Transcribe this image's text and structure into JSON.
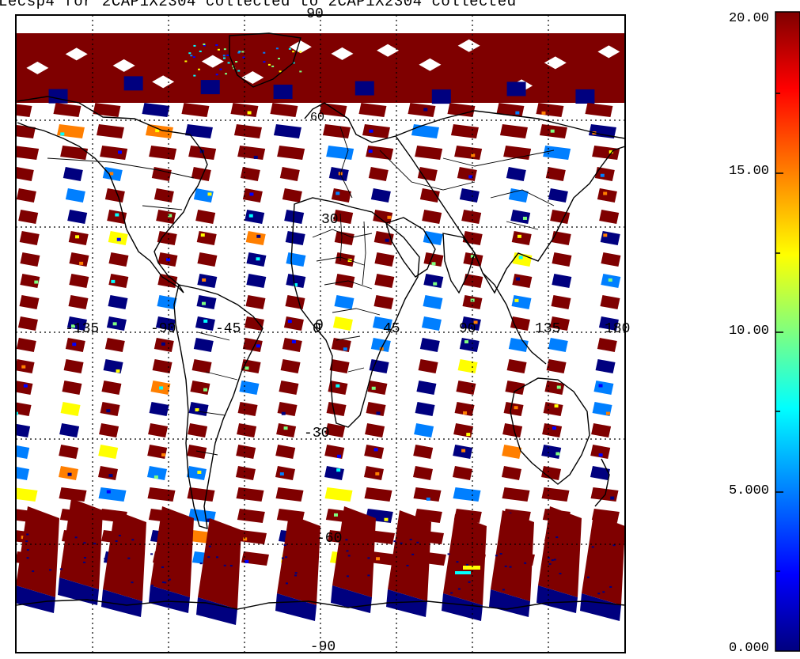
{
  "title": "Lecsp4 for 2CAP1X2304 collected to 2CAP1X2304 collected",
  "map": {
    "grid_lat_labels": [
      "90",
      "30",
      "0",
      "-30",
      "-60",
      "-90"
    ],
    "grid_lon_labels": [
      "-135",
      "-90",
      "-45",
      "0",
      "45",
      "90",
      "135",
      "180"
    ],
    "continent_labels": [
      "60"
    ]
  },
  "colorbar": {
    "ticks": [
      "20.00",
      "15.00",
      "10.00",
      "5.000",
      "0.000"
    ],
    "min": 0,
    "max": 20,
    "colormap": [
      "#00007f",
      "#0000ff",
      "#007fff",
      "#00ffff",
      "#7fff7f",
      "#ffff00",
      "#ff7f00",
      "#ff0000",
      "#7f0000"
    ]
  },
  "colors": {
    "high": "#7f0000",
    "low": "#00007f",
    "frame": "#000000"
  }
}
